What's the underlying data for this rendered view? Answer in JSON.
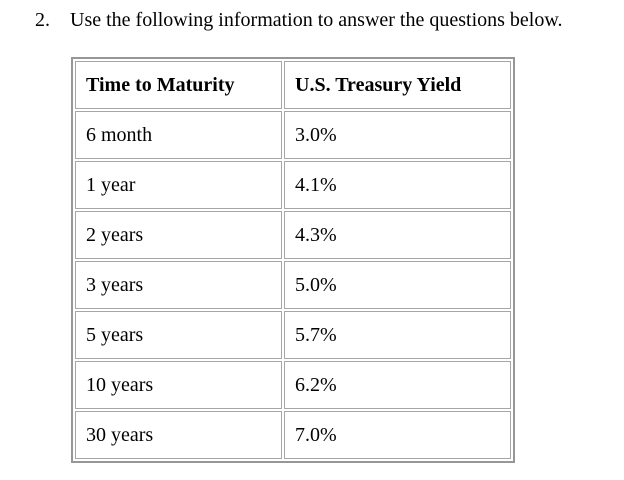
{
  "question": {
    "number": "2.",
    "text": "Use the following information to answer the questions below."
  },
  "table": {
    "headers": [
      "Time to Maturity",
      "U.S. Treasury Yield"
    ],
    "rows": [
      [
        "6 month",
        "3.0%"
      ],
      [
        "1 year",
        "4.1%"
      ],
      [
        "2 years",
        "4.3%"
      ],
      [
        "3 years",
        "5.0%"
      ],
      [
        "5 years",
        "5.7%"
      ],
      [
        "10 years",
        "6.2%"
      ],
      [
        "30 years",
        "7.0%"
      ]
    ]
  },
  "colors": {
    "background": "#ffffff",
    "text": "#000000",
    "table_border_outer": "#979797",
    "table_border_inner": "#a6a6a6"
  }
}
